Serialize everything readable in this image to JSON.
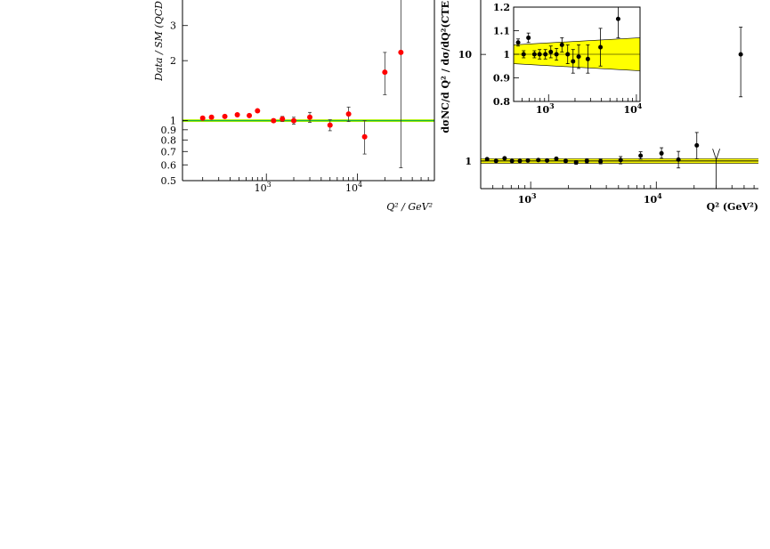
{
  "chart_data": [
    {
      "type": "scatter",
      "panel": "left",
      "xlabel": "Q² / GeV²",
      "ylabel": "Data / SM (QCD",
      "yscale": "log",
      "xscale": "log",
      "xlim": [
        120,
        70000
      ],
      "ylim": [
        0.5,
        4.2
      ],
      "grid": false,
      "x_ticks": [
        {
          "v": 1000,
          "mant": "10",
          "exp": "3"
        },
        {
          "v": 10000,
          "mant": "10",
          "exp": "4"
        }
      ],
      "y_ticks": [
        {
          "v": 0.5,
          "label": "0.5"
        },
        {
          "v": 0.6,
          "label": "0.6"
        },
        {
          "v": 0.7,
          "label": "0.7"
        },
        {
          "v": 0.8,
          "label": "0.8"
        },
        {
          "v": 0.9,
          "label": "0.9"
        },
        {
          "v": 1,
          "label": "1"
        },
        {
          "v": 2,
          "label": "2"
        },
        {
          "v": 3,
          "label": "3"
        }
      ],
      "band": {
        "lo": 0.985,
        "hi": 1.015,
        "color": "#b0f000",
        "line_color": "#00aa44"
      },
      "marker_color": "#ff0000",
      "points": [
        {
          "x": 200,
          "y": 1.03,
          "err": [
            0.01,
            0.01
          ]
        },
        {
          "x": 250,
          "y": 1.04,
          "err": [
            0.01,
            0.01
          ]
        },
        {
          "x": 350,
          "y": 1.05,
          "err": [
            0.01,
            0.01
          ]
        },
        {
          "x": 480,
          "y": 1.07,
          "err": [
            0.015,
            0.015
          ]
        },
        {
          "x": 650,
          "y": 1.06,
          "err": [
            0.015,
            0.015
          ]
        },
        {
          "x": 800,
          "y": 1.12,
          "err": [
            0.02,
            0.02
          ]
        },
        {
          "x": 1200,
          "y": 1.0,
          "err": [
            0.02,
            0.02
          ]
        },
        {
          "x": 1500,
          "y": 1.02,
          "err": [
            0.03,
            0.03
          ]
        },
        {
          "x": 2000,
          "y": 1.0,
          "err": [
            0.04,
            0.04
          ]
        },
        {
          "x": 3000,
          "y": 1.04,
          "err": [
            0.06,
            0.06
          ]
        },
        {
          "x": 5000,
          "y": 0.95,
          "err": [
            0.06,
            0.06
          ]
        },
        {
          "x": 8000,
          "y": 1.08,
          "err": [
            0.09,
            0.09
          ]
        },
        {
          "x": 12000,
          "y": 0.83,
          "err": [
            0.15,
            0.17
          ]
        },
        {
          "x": 20000,
          "y": 1.75,
          "err": [
            0.4,
            0.45
          ]
        },
        {
          "x": 30000,
          "y": 2.2,
          "err": [
            1.62,
            2.0
          ]
        }
      ]
    },
    {
      "type": "scatter",
      "panel": "right",
      "xlabel": "Q² (GeV²)",
      "ylabel": "dσNC/d Q² / dσ/dQ²(CTE",
      "yscale": "log",
      "xscale": "log",
      "xlim": [
        400,
        65000
      ],
      "ylim": [
        0.55,
        30
      ],
      "grid": false,
      "x_ticks": [
        {
          "v": 1000,
          "mant": "10",
          "exp": "3"
        },
        {
          "v": 10000,
          "mant": "10",
          "exp": "4"
        }
      ],
      "y_ticks": [
        {
          "v": 1,
          "label": "1"
        },
        {
          "v": 10,
          "label": "10"
        }
      ],
      "band": {
        "lo": 0.95,
        "hi": 1.05,
        "color": "#ffff00",
        "line_color": "#000000"
      },
      "marker_color": "#000000",
      "points": [
        {
          "x": 450,
          "y": 1.04,
          "err": [
            0.01,
            0.01
          ]
        },
        {
          "x": 530,
          "y": 1.0,
          "err": [
            0.01,
            0.01
          ]
        },
        {
          "x": 620,
          "y": 1.06,
          "err": [
            0.01,
            0.01
          ]
        },
        {
          "x": 710,
          "y": 1.0,
          "err": [
            0.015,
            0.015
          ]
        },
        {
          "x": 820,
          "y": 1.0,
          "err": [
            0.015,
            0.015
          ]
        },
        {
          "x": 950,
          "y": 1.01,
          "err": [
            0.02,
            0.02
          ]
        },
        {
          "x": 1150,
          "y": 1.02,
          "err": [
            0.02,
            0.02
          ]
        },
        {
          "x": 1350,
          "y": 1.01,
          "err": [
            0.02,
            0.02
          ]
        },
        {
          "x": 1600,
          "y": 1.05,
          "err": [
            0.02,
            0.02
          ]
        },
        {
          "x": 1900,
          "y": 1.0,
          "err": [
            0.03,
            0.03
          ]
        },
        {
          "x": 2300,
          "y": 0.97,
          "err": [
            0.04,
            0.04
          ]
        },
        {
          "x": 2800,
          "y": 1.0,
          "err": [
            0.05,
            0.05
          ]
        },
        {
          "x": 3600,
          "y": 0.99,
          "err": [
            0.05,
            0.05
          ]
        },
        {
          "x": 5200,
          "y": 1.02,
          "err": [
            0.08,
            0.08
          ]
        },
        {
          "x": 7500,
          "y": 1.12,
          "err": [
            0.08,
            0.1
          ]
        },
        {
          "x": 11000,
          "y": 1.18,
          "err": [
            0.12,
            0.15
          ]
        },
        {
          "x": 15000,
          "y": 1.03,
          "err": [
            0.17,
            0.2
          ]
        },
        {
          "x": 21000,
          "y": 1.4,
          "err": [
            0.35,
            0.45
          ]
        },
        {
          "x": 47000,
          "y": 10.0,
          "err": [
            6.0,
            8.0
          ]
        }
      ],
      "upper_limit": {
        "x": 30000,
        "y": 0.55,
        "y_top": 1.3
      }
    },
    {
      "type": "scatter",
      "panel": "inset",
      "yscale": "linear",
      "xscale": "log",
      "xlim": [
        400,
        11000
      ],
      "ylim": [
        0.8,
        1.2
      ],
      "grid": false,
      "x_ticks": [
        {
          "v": 1000,
          "mant": "10",
          "exp": "3"
        },
        {
          "v": 10000,
          "mant": "10",
          "exp": "4"
        }
      ],
      "y_ticks": [
        {
          "v": 0.8,
          "label": "0.8"
        },
        {
          "v": 0.9,
          "label": "0.9"
        },
        {
          "v": 1,
          "label": "1"
        },
        {
          "v": 1.1,
          "label": "1.1"
        },
        {
          "v": 1.2,
          "label": "1.2"
        }
      ],
      "band": {
        "lo_left": 0.96,
        "hi_left": 1.04,
        "lo_right": 0.93,
        "hi_right": 1.07,
        "color": "#ffff00",
        "line_color": "#000000"
      },
      "marker_color": "#000000",
      "points": [
        {
          "x": 450,
          "y": 1.05,
          "err": [
            0.015,
            0.015
          ]
        },
        {
          "x": 520,
          "y": 1.0,
          "err": [
            0.015,
            0.015
          ]
        },
        {
          "x": 590,
          "y": 1.07,
          "err": [
            0.02,
            0.02
          ]
        },
        {
          "x": 690,
          "y": 1.0,
          "err": [
            0.015,
            0.015
          ]
        },
        {
          "x": 790,
          "y": 1.0,
          "err": [
            0.02,
            0.02
          ]
        },
        {
          "x": 920,
          "y": 1.0,
          "err": [
            0.02,
            0.02
          ]
        },
        {
          "x": 1060,
          "y": 1.01,
          "err": [
            0.025,
            0.025
          ]
        },
        {
          "x": 1230,
          "y": 1.0,
          "err": [
            0.025,
            0.025
          ]
        },
        {
          "x": 1420,
          "y": 1.04,
          "err": [
            0.03,
            0.03
          ]
        },
        {
          "x": 1650,
          "y": 1.0,
          "err": [
            0.04,
            0.04
          ]
        },
        {
          "x": 1900,
          "y": 0.97,
          "err": [
            0.05,
            0.05
          ]
        },
        {
          "x": 2200,
          "y": 0.99,
          "err": [
            0.05,
            0.05
          ]
        },
        {
          "x": 2800,
          "y": 0.98,
          "err": [
            0.06,
            0.06
          ]
        },
        {
          "x": 3900,
          "y": 1.03,
          "err": [
            0.08,
            0.08
          ]
        },
        {
          "x": 6200,
          "y": 1.15,
          "err": [
            0.08,
            0.1
          ]
        }
      ]
    }
  ]
}
